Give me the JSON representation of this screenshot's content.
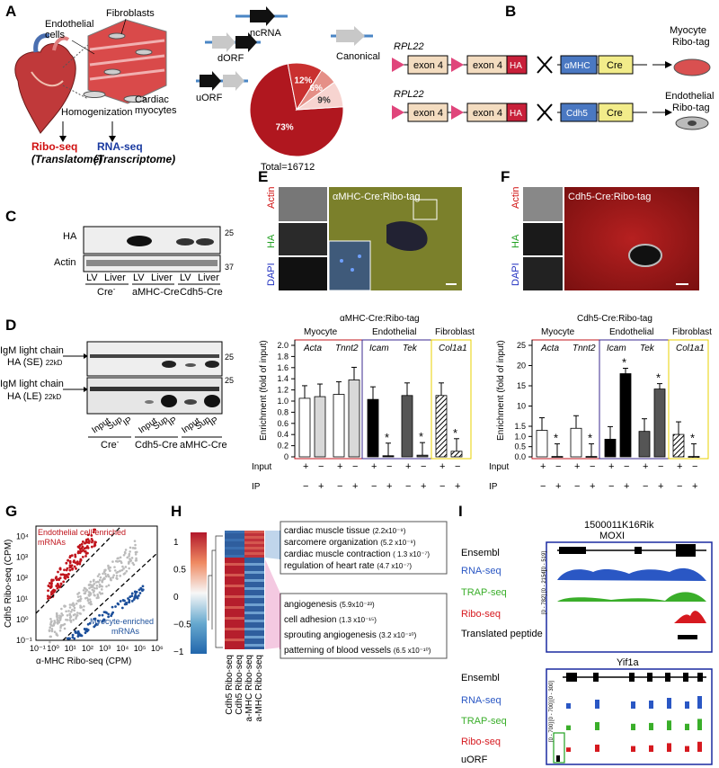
{
  "panels": {
    "A": "A",
    "B": "B",
    "C": "C",
    "D": "D",
    "E": "E",
    "F": "F",
    "G": "G",
    "H": "H",
    "I": "I"
  },
  "panelA": {
    "labels": {
      "endothelial": "Endothelial",
      "cells": "cells",
      "fibroblasts": "Fibroblasts",
      "cardiac": "Cardiac",
      "myocytes": "myocytes",
      "homogenization": "Homogenization",
      "riboseq": "Ribo-seq",
      "translatome": "(Translatome)",
      "rnaseq": "RNA-seq",
      "transcriptome": "(Transcriptome)"
    },
    "orf_labels": {
      "ncrna": "ncRNA",
      "dorf": "dORF",
      "uorf": "uORF",
      "canonical": "Canonical"
    },
    "total": "Total=16712",
    "chart_data": {
      "type": "pie",
      "categories": [
        "Canonical",
        "uORF",
        "dORF",
        "ncRNA"
      ],
      "values": [
        73,
        12,
        6,
        9
      ],
      "value_labels": [
        "73%",
        "12%",
        "6%",
        "9%"
      ],
      "colors": [
        "#b0171f",
        "#c9302f",
        "#e58f87",
        "#f7d4d0"
      ]
    }
  },
  "panelB": {
    "rpl22": "RPL22",
    "exon4": "exon 4",
    "ha": "HA",
    "amhc": "αMHC",
    "cdh5": "Cdh5",
    "cre": "Cre",
    "myocyte": "Myocyte",
    "endothelial": "Endothelial",
    "ribotag": "Ribo-tag"
  },
  "panelC": {
    "ha": "HA",
    "actin": "Actin",
    "m25": "25",
    "m37": "37",
    "lv": "LV",
    "liver": "Liver",
    "creneg": "Cre",
    "creneg_sup": "-",
    "amhc_cre": "aMHC-Cre",
    "cdh5_cre": "Cdh5-Cre"
  },
  "panelD": {
    "row1": "IgM light chain",
    "row1b": "HA (SE)",
    "row2": "IgM light chain",
    "row2b": "HA (LE)",
    "kd": "22kD",
    "m25": "25",
    "input": "Input",
    "sup": "Sup",
    "ip": "IP",
    "creneg": "Cre",
    "creneg_sup": "-",
    "cdh5_cre": "Cdh5-Cre",
    "amhc_cre": "aMHC-Cre"
  },
  "panelE": {
    "title": "αMHC-Cre:Ribo-tag",
    "actin": "Actin",
    "ha": "HA",
    "dapi": "DAPI"
  },
  "panelF": {
    "title": "Cdh5-Cre:Ribo-tag",
    "actin": "Actin",
    "ha": "HA",
    "dapi": "DAPI"
  },
  "barcharts": {
    "groups": {
      "myocyte": "Myocyte",
      "endothelial": "Endothelial",
      "fibroblast": "Fibroblast"
    },
    "input_label": "Input",
    "ip_label": "IP",
    "signs": [
      "+",
      "−",
      "+",
      "−",
      "+",
      "−",
      "+",
      "−",
      "+",
      "−"
    ],
    "ipsigns": [
      "−",
      "+",
      "−",
      "+",
      "−",
      "+",
      "−",
      "+",
      "−",
      "+"
    ],
    "star": "*"
  },
  "chart_data": [
    {
      "type": "bar",
      "title": "αMHC-Cre:Ribo-tag",
      "ylabel": "Enrichment (fold of input)",
      "genes": [
        "Acta",
        "Tnnt2",
        "Icam",
        "Tek",
        "Col1a1"
      ],
      "ylim": [
        0,
        2.0
      ],
      "yticks": [
        "0",
        "0.2",
        "0.4",
        "0.6",
        "0.8",
        "1.0",
        "1.2",
        "1.4",
        "1.6",
        "1.8",
        "2.0"
      ],
      "series": [
        {
          "name": "Input",
          "values": [
            1.05,
            1.12,
            1.03,
            1.1,
            1.1
          ]
        },
        {
          "name": "IP",
          "values": [
            1.08,
            1.38,
            0.02,
            0.03,
            0.1
          ]
        }
      ],
      "significant": [
        "Icam",
        "Tek",
        "Col1a1"
      ]
    },
    {
      "type": "bar",
      "title": "Cdh5-Cre:Ribo-tag",
      "ylabel": "Enrichment (fold of input)",
      "genes": [
        "Acta",
        "Tnnt2",
        "Icam",
        "Tek",
        "Col1a1"
      ],
      "ylim": [
        0,
        25
      ],
      "yticks": [
        "0.0",
        "0.5",
        "1.0",
        "1.5",
        "10",
        "15",
        "20",
        "25"
      ],
      "series": [
        {
          "name": "Input",
          "values": [
            1.3,
            1.4,
            1.8,
            1.25,
            1.1
          ]
        },
        {
          "name": "IP",
          "values": [
            0.02,
            0.02,
            18.0,
            14.2,
            0.02
          ]
        }
      ],
      "significant": [
        "Acta",
        "Tnnt2",
        "Icam",
        "Tek",
        "Col1a1"
      ]
    },
    {
      "type": "scatter",
      "xlabel": "α-MHC Ribo-seq (CPM)",
      "ylabel": "Cdh5 Ribo-seq (CPM)",
      "xticks": [
        "10⁻¹",
        "10⁰",
        "10¹",
        "10²",
        "10³",
        "10⁴",
        "10⁵",
        "10⁶"
      ],
      "yticks": [
        "10⁻¹",
        "10⁰",
        "10¹",
        "10²",
        "10³",
        "10⁴"
      ],
      "annotations": {
        "endo": "Endothelial cell-enriched",
        "endo2": "mRNAs",
        "myo": "Myocyte-enriched",
        "myo2": "mRNAs"
      },
      "series_colors": {
        "endothelial": "#c0141c",
        "myocyte": "#1c4f9a",
        "other": "#bbbbbb"
      }
    },
    {
      "type": "heatmap",
      "columns": [
        "Cdh5 Ribo-seq",
        "Cdh5 Ribo-seq",
        "a-MHC Ribo-seq",
        "a-MHC Ribo-seq"
      ],
      "scale": [
        "1",
        "0.5",
        "0",
        "−0.5",
        "−1"
      ],
      "go_top": [
        {
          "term": "cardiac muscle tissue",
          "p": "(2.2x10⁻⁹)"
        },
        {
          "term": "sarcomere organization",
          "p": "(5.2 x10⁻⁹)"
        },
        {
          "term": "cardiac muscle contraction",
          "p": "( 1.3 x10⁻⁷)"
        },
        {
          "term": "regulation of heart rate",
          "p": "(4.7 x10⁻⁷)"
        }
      ],
      "go_bottom": [
        {
          "term": "angiogenesis",
          "p": "(5.9x10⁻²³)"
        },
        {
          "term": "cell  adhesion",
          "p": "(1.3 x10⁻¹⁵)"
        },
        {
          "term": "sprouting angiogenesis",
          "p": "(3.2 x10⁻¹⁰)"
        },
        {
          "term": "patterning of blood vessels",
          "p": "(6.5 x10⁻¹⁰)"
        }
      ]
    }
  ],
  "panelI": {
    "gene1": "1500011K16Rik",
    "gene1b": "MOXI",
    "gene2": "Yif1a",
    "tracks1": [
      "Ensembl",
      "RNA-seq",
      "TRAP-seq",
      "Ribo-seq",
      "Translated peptide"
    ],
    "tracks2": [
      "Ensembl",
      "RNA-seq",
      "TRAP-seq",
      "Ribo-seq",
      "uORF"
    ],
    "ranges1": [
      "[0 - 519]",
      "[0 - 2154]",
      "[0 - 782]"
    ],
    "ranges2": [
      "[0 - 300]",
      "[0 - 700]",
      "[0 - 700]"
    ],
    "colors": {
      "rna": "#2a57c4",
      "trap": "#3aae2a",
      "ribo": "#d6191f"
    }
  }
}
